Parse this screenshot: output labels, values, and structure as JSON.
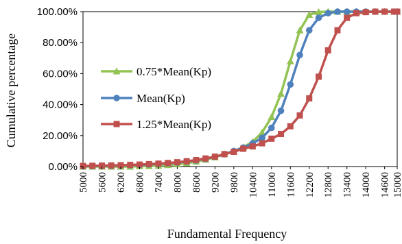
{
  "chart_data": {
    "type": "line",
    "title": "",
    "xlabel": "Fundamental Frequency",
    "ylabel": "Cumulative percentage",
    "x_ticks": [
      "5000",
      "5600",
      "6200",
      "6800",
      "7400",
      "8000",
      "8600",
      "9200",
      "9800",
      "10400",
      "11000",
      "11600",
      "12200",
      "12800",
      "13400",
      "14000",
      "14600",
      "15000"
    ],
    "xlim": [
      5000,
      15000
    ],
    "y_ticks": [
      "0.00%",
      "20.00%",
      "40.00%",
      "60.00%",
      "80.00%",
      "100.00%"
    ],
    "ylim": [
      0,
      100
    ],
    "grid": false,
    "legend_position": "left",
    "series": [
      {
        "name": "0.75*Mean(Kp)",
        "color": "#92c353",
        "marker": "triangle",
        "x": [
          5000,
          5300,
          5600,
          5900,
          6200,
          6500,
          6800,
          7100,
          7400,
          7700,
          8000,
          8300,
          8600,
          8900,
          9200,
          9500,
          9800,
          10100,
          10400,
          10700,
          11000,
          11300,
          11600,
          11900,
          12200,
          12500,
          12800,
          13100,
          13400,
          13700,
          14000,
          14300,
          14600,
          14900,
          15000
        ],
        "values": [
          0,
          0,
          0,
          0,
          0,
          0,
          0.2,
          0.4,
          0.6,
          1,
          1.5,
          2.2,
          3.2,
          4.5,
          6,
          8,
          10,
          12.5,
          16,
          22,
          32,
          47,
          68,
          88,
          98,
          99.8,
          100,
          100,
          100,
          100,
          100,
          100,
          100,
          100,
          100
        ]
      },
      {
        "name": "Mean(Kp)",
        "color": "#4f81bd",
        "marker": "circle",
        "x": [
          5000,
          5300,
          5600,
          5900,
          6200,
          6500,
          6800,
          7100,
          7400,
          7700,
          8000,
          8300,
          8600,
          8900,
          9200,
          9500,
          9800,
          10100,
          10400,
          10700,
          11000,
          11300,
          11600,
          11900,
          12200,
          12500,
          12800,
          13100,
          13400,
          13700,
          14000,
          14300,
          14600,
          14900,
          15000
        ],
        "values": [
          0.2,
          0.3,
          0.4,
          0.5,
          0.7,
          0.9,
          1.1,
          1.4,
          1.7,
          2.1,
          2.6,
          3.2,
          4,
          5,
          6.3,
          8,
          10,
          12.2,
          15,
          18.5,
          25,
          36,
          53,
          72,
          88,
          96,
          99,
          100,
          100,
          100,
          100,
          100,
          100,
          100,
          100
        ]
      },
      {
        "name": "1.25*Mean(Kp)",
        "color": "#c0504d",
        "marker": "square",
        "x": [
          5000,
          5300,
          5600,
          5900,
          6200,
          6500,
          6800,
          7100,
          7400,
          7700,
          8000,
          8300,
          8600,
          8900,
          9200,
          9500,
          9800,
          10100,
          10400,
          10700,
          11000,
          11300,
          11600,
          11900,
          12200,
          12500,
          12800,
          13100,
          13400,
          13700,
          14000,
          14300,
          14600,
          14900,
          15000
        ],
        "values": [
          0.4,
          0.5,
          0.6,
          0.7,
          0.9,
          1.1,
          1.3,
          1.6,
          1.9,
          2.3,
          2.8,
          3.4,
          4.2,
          5.2,
          6.4,
          8,
          9.5,
          11.5,
          13,
          15,
          18,
          21,
          26,
          33,
          44,
          58,
          75,
          88,
          96,
          99,
          99.7,
          100,
          100,
          100,
          100
        ]
      }
    ]
  }
}
